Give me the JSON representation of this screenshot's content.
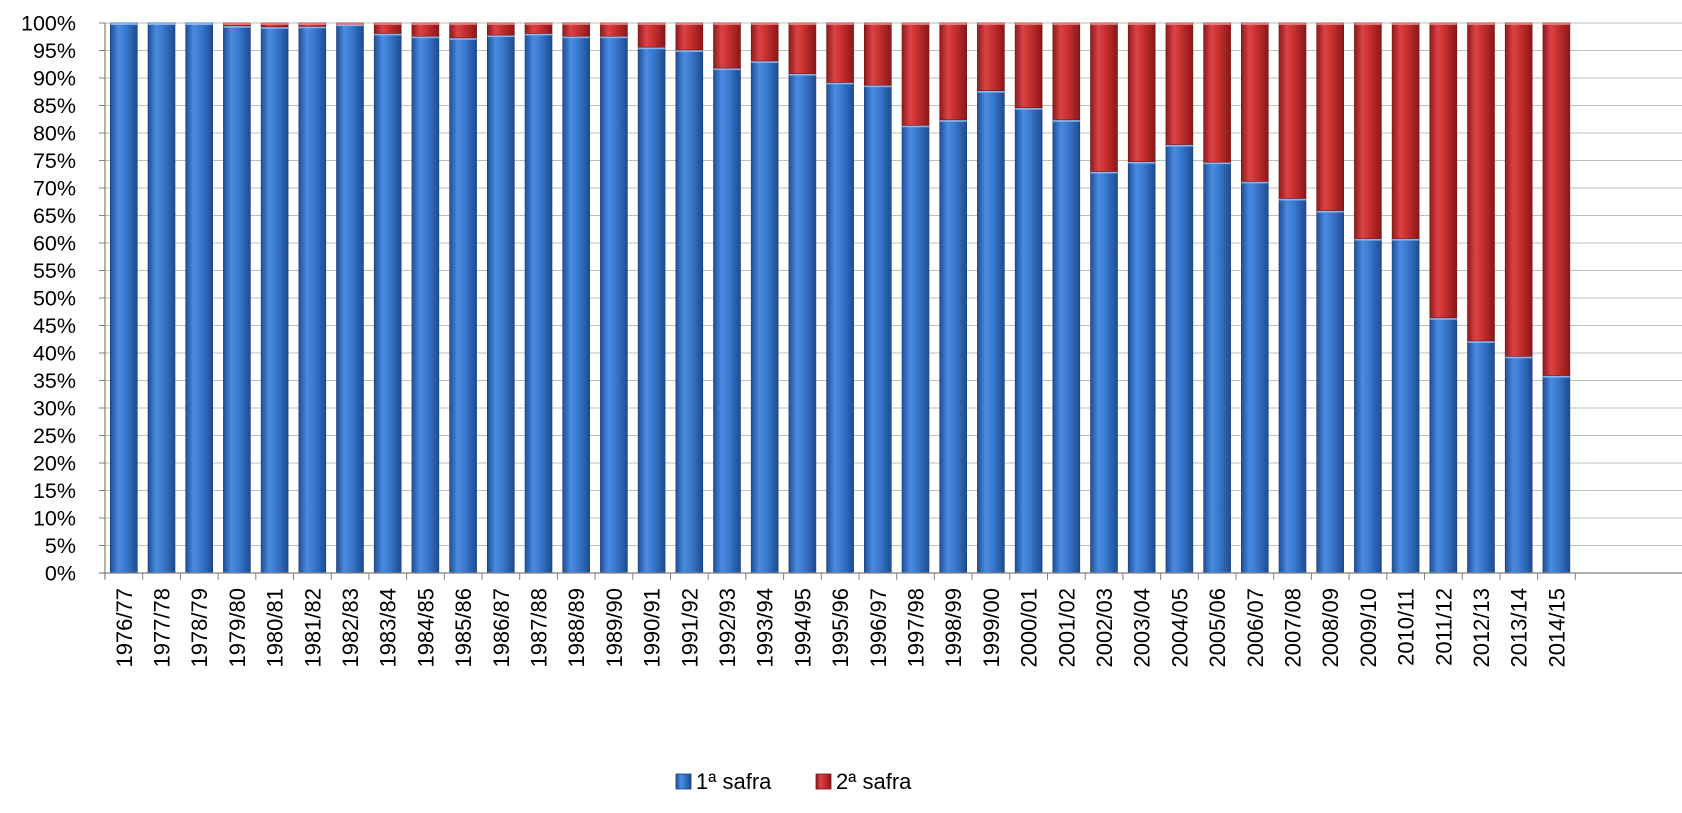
{
  "chart_data": {
    "type": "bar",
    "stacked": true,
    "percent_stacked": true,
    "title": "",
    "xlabel": "",
    "ylabel": "",
    "ylim": [
      0,
      100
    ],
    "ytick_step": 5,
    "ytick_format": "{v}%",
    "grid": "horizontal",
    "legend_position": "bottom",
    "categories": [
      "1976/77",
      "1977/78",
      "1978/79",
      "1979/80",
      "1980/81",
      "1981/82",
      "1982/83",
      "1983/84",
      "1984/85",
      "1985/86",
      "1986/87",
      "1987/88",
      "1988/89",
      "1989/90",
      "1990/91",
      "1991/92",
      "1992/93",
      "1993/94",
      "1994/95",
      "1995/96",
      "1996/97",
      "1997/98",
      "1998/99",
      "1999/00",
      "2000/01",
      "2001/02",
      "2002/03",
      "2003/04",
      "2004/05",
      "2005/06",
      "2006/07",
      "2007/08",
      "2008/09",
      "2009/10",
      "2010/11",
      "2011/12",
      "2012/13",
      "2013/14",
      "2014/15"
    ],
    "series": [
      {
        "name": "1ª safra",
        "color": "#2E6FC8",
        "values": [
          100,
          100,
          100,
          99.5,
          99.3,
          99.4,
          99.8,
          98.1,
          97.6,
          97.3,
          97.8,
          98.1,
          97.6,
          97.6,
          95.6,
          95.1,
          91.8,
          93.1,
          90.8,
          89.2,
          88.7,
          81.4,
          82.4,
          87.7,
          84.6,
          82.4,
          73.0,
          74.8,
          77.9,
          74.7,
          71.2,
          68.1,
          65.9,
          60.8,
          60.8,
          46.4,
          42.2,
          39.4,
          35.9
        ]
      },
      {
        "name": "2ª safra",
        "color": "#C0282A",
        "values": [
          0,
          0,
          0,
          0.5,
          0.7,
          0.6,
          0.2,
          1.9,
          2.4,
          2.7,
          2.2,
          1.9,
          2.4,
          2.4,
          4.4,
          4.9,
          8.2,
          6.9,
          9.2,
          10.8,
          11.3,
          18.6,
          17.6,
          12.3,
          15.4,
          17.6,
          27.0,
          25.2,
          22.1,
          25.3,
          28.8,
          31.9,
          34.1,
          39.2,
          39.2,
          53.6,
          57.8,
          60.6,
          64.1
        ]
      }
    ]
  }
}
